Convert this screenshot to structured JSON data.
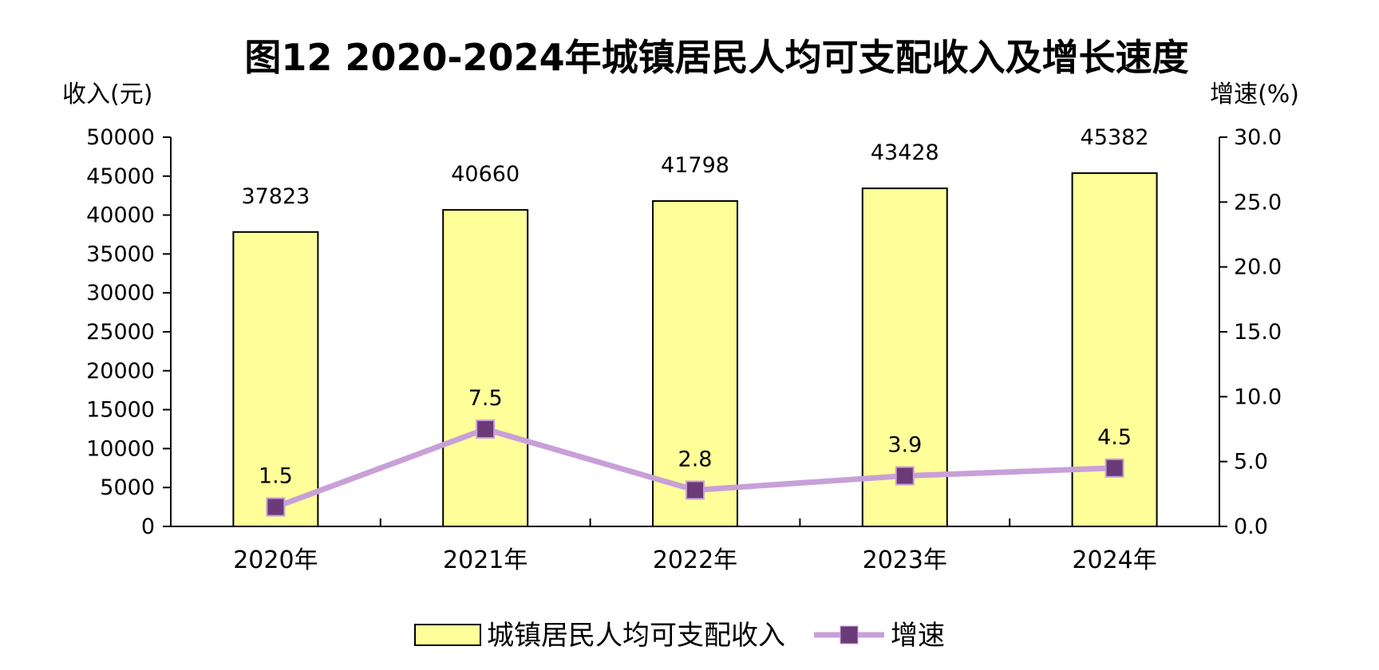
{
  "chart_data": {
    "type": "bar+line",
    "title": "图12  2020-2024年城镇居民人均可支配收入及增长速度",
    "ylabel_left": "收入(元)",
    "ylabel_right": "增速(%)",
    "categories": [
      "2020年",
      "2021年",
      "2022年",
      "2023年",
      "2024年"
    ],
    "y_left": {
      "min": 0,
      "max": 50000,
      "step": 5000,
      "ticks": [
        "0",
        "5000",
        "10000",
        "15000",
        "20000",
        "25000",
        "30000",
        "35000",
        "40000",
        "45000",
        "50000"
      ]
    },
    "y_right": {
      "min": 0,
      "max": 30,
      "step": 5,
      "ticks": [
        "0.0",
        "5.0",
        "10.0",
        "15.0",
        "20.0",
        "25.0",
        "30.0"
      ]
    },
    "series": [
      {
        "name": "城镇居民人均可支配收入",
        "kind": "bar",
        "axis": "left",
        "values": [
          37823,
          40660,
          41798,
          43428,
          45382
        ],
        "labels": [
          "37823",
          "40660",
          "41798",
          "43428",
          "45382"
        ]
      },
      {
        "name": "增速",
        "kind": "line",
        "axis": "right",
        "values": [
          1.5,
          7.5,
          2.8,
          3.9,
          4.5
        ],
        "labels": [
          "1.5",
          "7.5",
          "2.8",
          "3.9",
          "4.5"
        ]
      }
    ],
    "grid": false,
    "legend_position": "bottom-center"
  },
  "colors": {
    "bar_fill": "#FFFF99",
    "bar_stroke": "#000000",
    "line": "#C8A0D8",
    "marker": "#6B3A78",
    "axis": "#000000"
  }
}
